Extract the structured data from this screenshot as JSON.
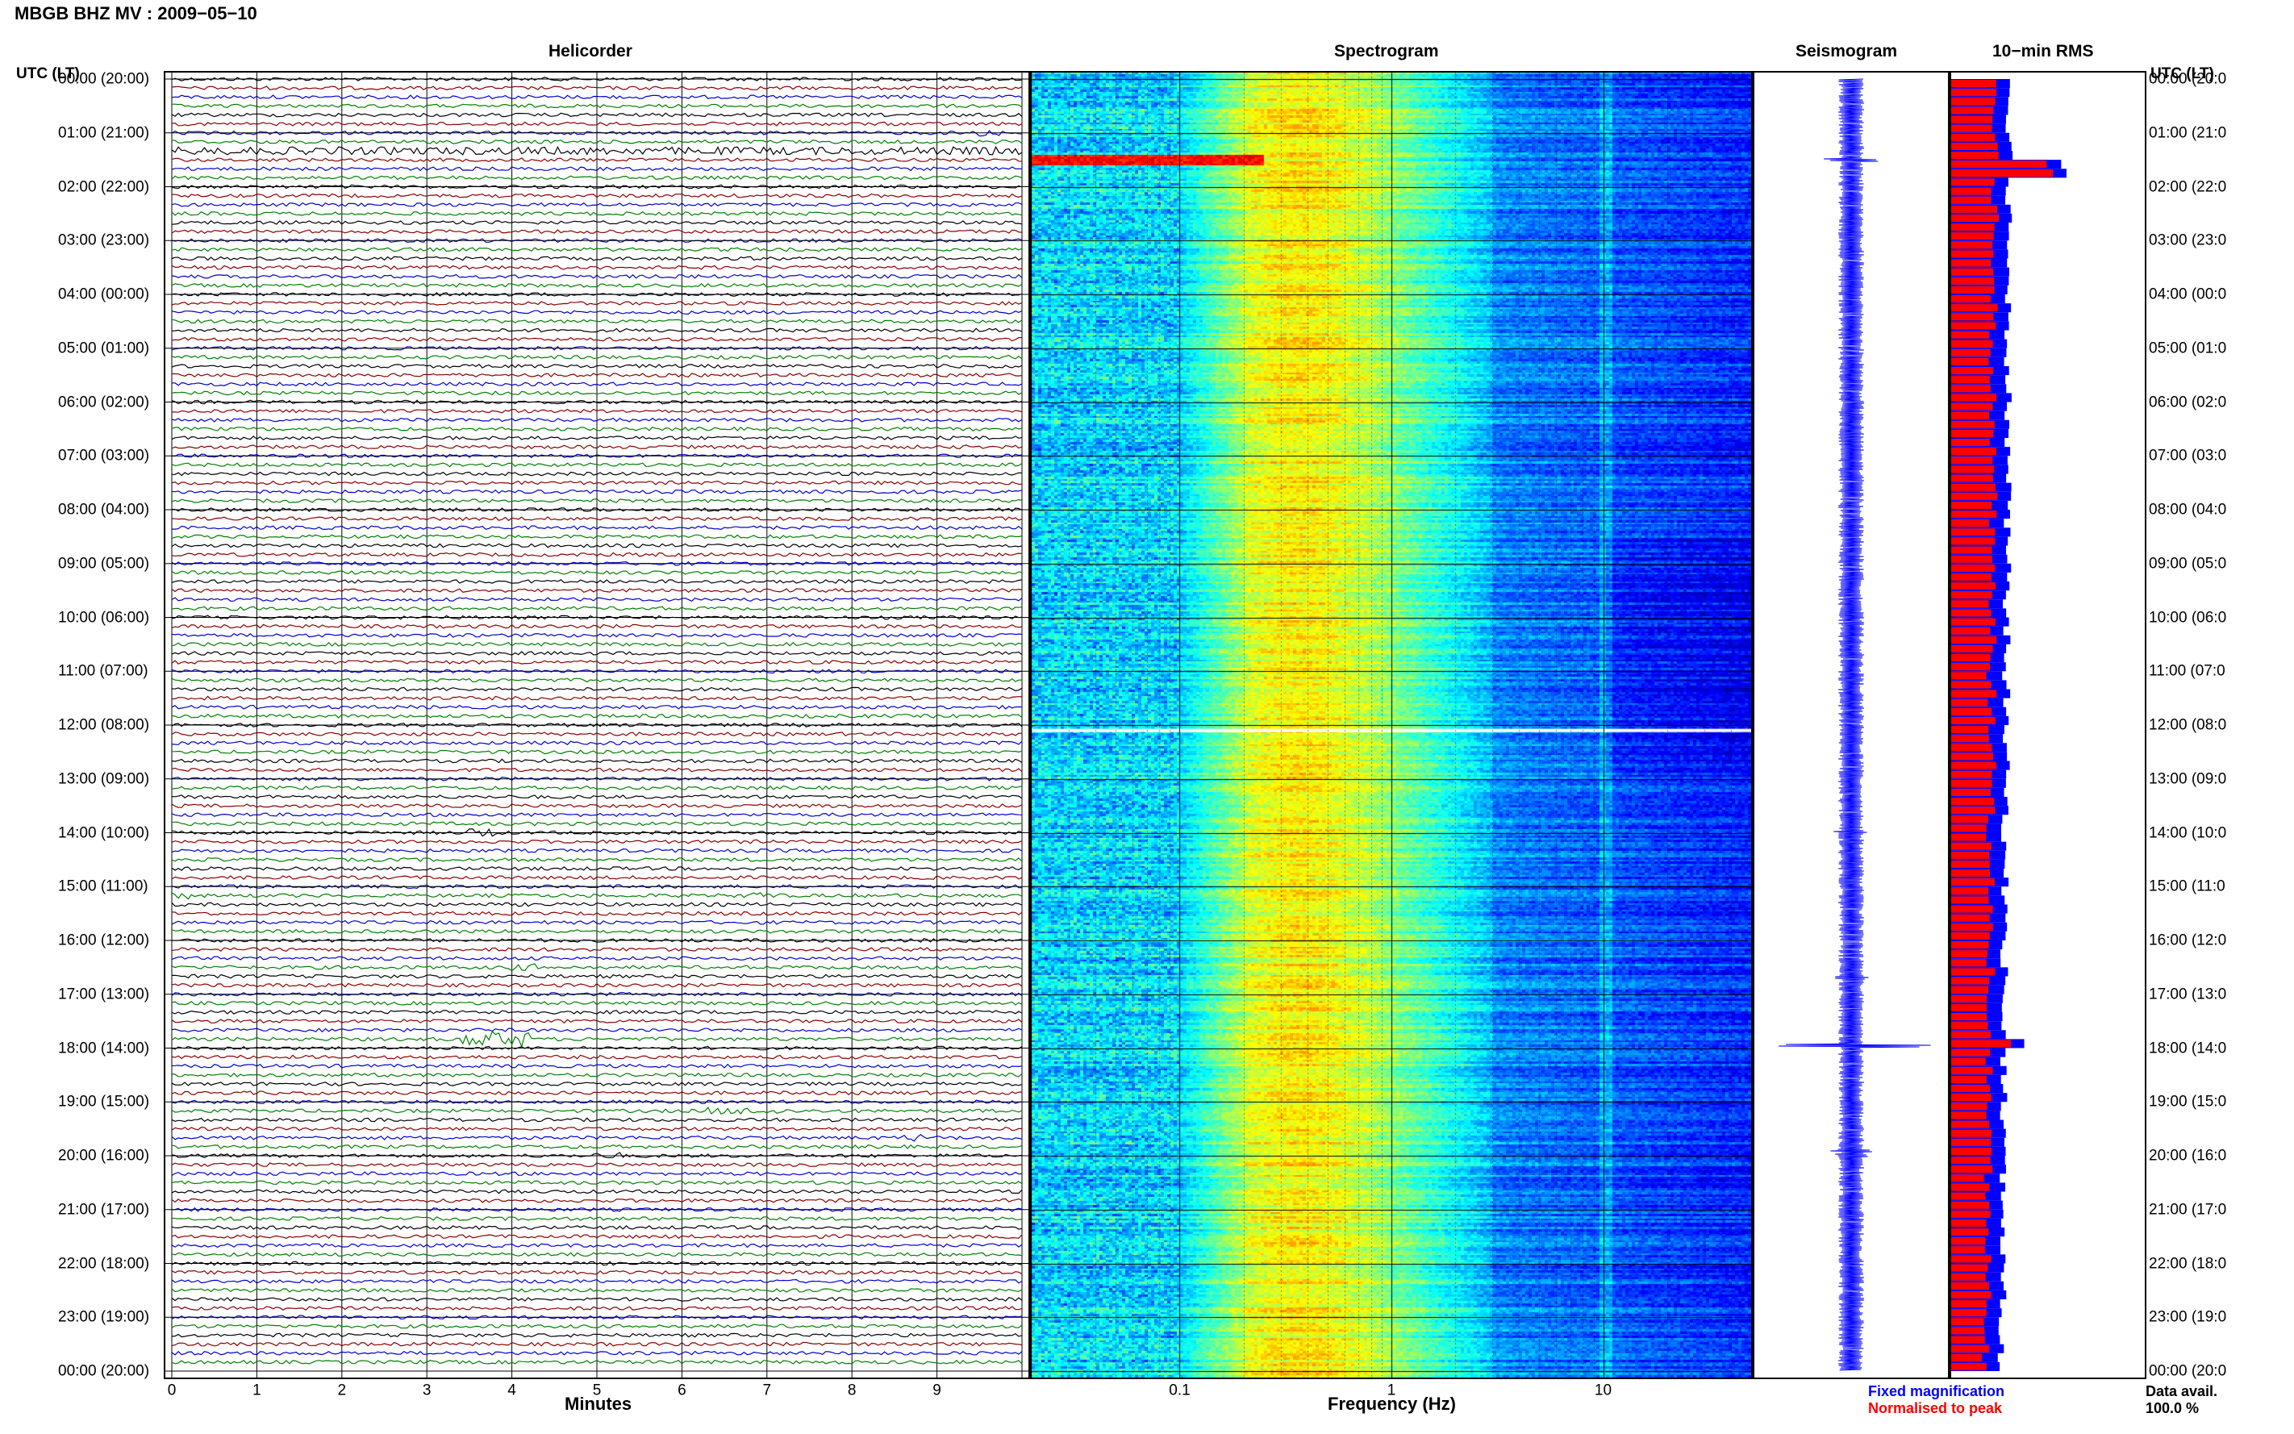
{
  "header": {
    "title": "MBGB BHZ MV : 2009−05−10"
  },
  "utc_label_left": "UTC (LT)",
  "utc_label_right": "UTC (LT)",
  "panels": {
    "helicorder": "Helicorder",
    "spectrogram": "Spectrogram",
    "seismogram": "Seismogram",
    "rms": "10−min RMS"
  },
  "time_labels": [
    "00:00 (20:00)",
    "01:00 (21:00)",
    "02:00 (22:00)",
    "03:00 (23:00)",
    "04:00 (00:00)",
    "05:00 (01:00)",
    "06:00 (02:00)",
    "07:00 (03:00)",
    "08:00 (04:00)",
    "09:00 (05:00)",
    "10:00 (06:00)",
    "11:00 (07:00)",
    "12:00 (08:00)",
    "13:00 (09:00)",
    "14:00 (10:00)",
    "15:00 (11:00)",
    "16:00 (12:00)",
    "17:00 (13:00)",
    "18:00 (14:00)",
    "19:00 (15:00)",
    "20:00 (16:00)",
    "21:00 (17:00)",
    "22:00 (18:00)",
    "23:00 (19:00)",
    "00:00 (20:00)"
  ],
  "time_labels_right": [
    "00:00 (20:0",
    "01:00 (21:0",
    "02:00 (22:0",
    "03:00 (23:0",
    "04:00 (00:0",
    "05:00 (01:0",
    "06:00 (02:0",
    "07:00 (03:0",
    "08:00 (04:0",
    "09:00 (05:0",
    "10:00 (06:0",
    "11:00 (07:0",
    "12:00 (08:0",
    "13:00 (09:0",
    "14:00 (10:0",
    "15:00 (11:0",
    "16:00 (12:0",
    "17:00 (13:0",
    "18:00 (14:0",
    "19:00 (15:0",
    "20:00 (16:0",
    "21:00 (17:0",
    "22:00 (18:0",
    "23:00 (19:0",
    "00:00 (20:0"
  ],
  "helicorder_axis": {
    "xlabel": "Minutes",
    "ticks": [
      "0",
      "1",
      "2",
      "3",
      "4",
      "5",
      "6",
      "7",
      "8",
      "9"
    ]
  },
  "spectrogram_axis": {
    "xlabel": "Frequency (Hz)",
    "ticks": [
      "0.1",
      "1",
      "10"
    ]
  },
  "legend": {
    "fixed": "Fixed magnification",
    "normalised": "Normalised to peak",
    "fixed_color": "#0000ff",
    "normalised_color": "#ff0000"
  },
  "data_avail": {
    "label": "Data avail.",
    "value": "100.0 %"
  },
  "colors": {
    "trace_cycle": [
      "#000000",
      "#8b0000",
      "#0000cd",
      "#008000"
    ]
  },
  "chart_data": [
    {
      "type": "line",
      "name": "helicorder",
      "title": "Helicorder",
      "xlabel": "Minutes",
      "xlim": [
        0,
        10
      ],
      "traces_per_hour": 6,
      "hours": 24,
      "events": [
        {
          "hour": 1.3,
          "minute_start": 0,
          "minute_end": 10,
          "amp": 2.2
        },
        {
          "hour": 1.0,
          "minute_start": 9.3,
          "minute_end": 9.9,
          "amp": 2.0
        },
        {
          "hour": 14.0,
          "minute_start": 3.5,
          "minute_end": 3.8,
          "amp": 3.0
        },
        {
          "hour": 15.1,
          "minute_start": 0,
          "minute_end": 0.3,
          "amp": 2.0
        },
        {
          "hour": 15.2,
          "minute_start": 6.7,
          "minute_end": 7.1,
          "amp": 2.0
        },
        {
          "hour": 16.5,
          "minute_start": 4.0,
          "minute_end": 4.4,
          "amp": 2.0
        },
        {
          "hour": 17.8,
          "minute_start": 3.4,
          "minute_end": 4.2,
          "amp": 4.5
        },
        {
          "hour": 19.2,
          "minute_start": 6.2,
          "minute_end": 7.2,
          "amp": 2.0
        },
        {
          "hour": 19.6,
          "minute_start": 8.6,
          "minute_end": 8.9,
          "amp": 2.0
        },
        {
          "hour": 19.95,
          "minute_start": 5.0,
          "minute_end": 5.3,
          "amp": 2.0
        }
      ]
    },
    {
      "type": "heatmap",
      "name": "spectrogram",
      "title": "Spectrogram",
      "xlabel": "Frequency (Hz)",
      "xscale": "log",
      "xlim": [
        0.02,
        50
      ],
      "peak_band_hz": [
        0.2,
        0.6
      ],
      "gap_hour": 12.1,
      "event_hour": 1.5
    },
    {
      "type": "line",
      "name": "seismogram",
      "title": "Seismogram",
      "spikes": [
        {
          "hour": 1.5,
          "amp": 0.35
        },
        {
          "hour": 17.95,
          "amp": 0.9
        },
        {
          "hour": 14.0,
          "amp": 0.2
        },
        {
          "hour": 15.3,
          "amp": 0.15
        },
        {
          "hour": 16.7,
          "amp": 0.25
        },
        {
          "hour": 19.9,
          "amp": 0.25
        },
        {
          "hour": 20.0,
          "amp": 0.2
        }
      ]
    },
    {
      "type": "bar",
      "name": "rms",
      "title": "10−min RMS",
      "orientation": "horizontal",
      "bins_per_hour": 6,
      "bins": 144,
      "series": [
        {
          "name": "Fixed magnification",
          "color": "#0000ff"
        },
        {
          "name": "Normalised to peak",
          "color": "#ff0000"
        }
      ],
      "baseline_level": 0.45,
      "peaks": [
        {
          "bin": 9,
          "value": 0.95
        },
        {
          "bin": 10,
          "value": 1.0
        },
        {
          "bin": 107,
          "value": 0.6
        }
      ]
    }
  ]
}
